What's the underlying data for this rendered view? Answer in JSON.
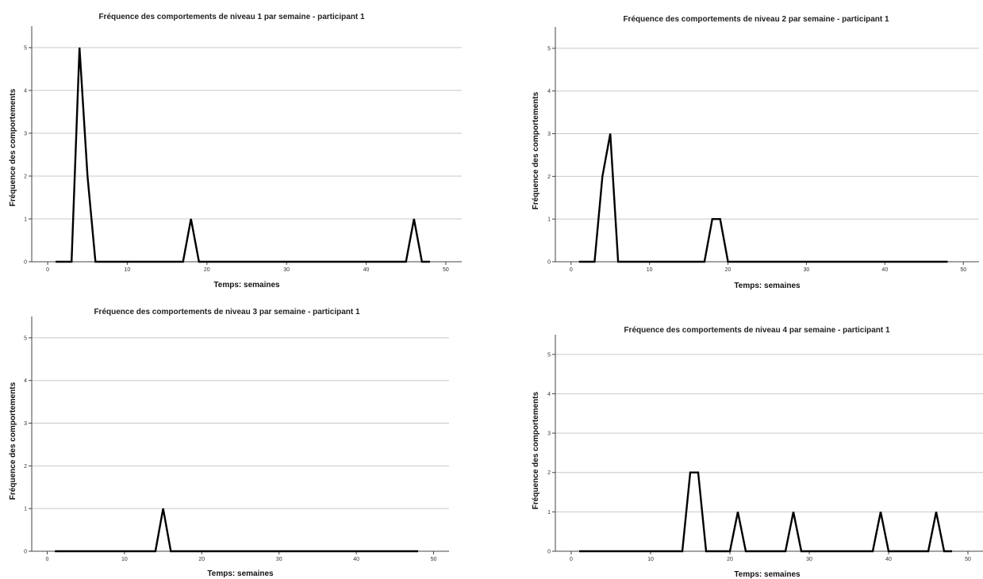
{
  "chart_data": [
    {
      "type": "line",
      "title": "Fréquence des comportements de niveau 1 par semaine - participant 1",
      "xlabel": "Temps: semaines",
      "ylabel": "Fréquence des comportements",
      "xlim": [
        -2,
        52
      ],
      "ylim": [
        0,
        5.5
      ],
      "x_ticks": [
        0,
        10,
        20,
        30,
        40,
        50
      ],
      "y_ticks": [
        0,
        1,
        2,
        3,
        4,
        5
      ],
      "grid": "horizontal",
      "x": [
        1,
        3,
        4,
        5,
        6,
        17,
        18,
        19,
        45,
        46,
        47,
        48
      ],
      "y": [
        0,
        0,
        5,
        2,
        0,
        0,
        1,
        0,
        0,
        1,
        0,
        0
      ]
    },
    {
      "type": "line",
      "title": "Fréquence des comportements de niveau 2 par semaine - participant 1",
      "xlabel": "Temps: semaines",
      "ylabel": "Fréquence des comportements",
      "xlim": [
        -2,
        52
      ],
      "ylim": [
        0,
        5.5
      ],
      "x_ticks": [
        0,
        10,
        20,
        30,
        40,
        50
      ],
      "y_ticks": [
        0,
        1,
        2,
        3,
        4,
        5
      ],
      "grid": "horizontal",
      "x": [
        1,
        3,
        4,
        5,
        6,
        17,
        18,
        19,
        20,
        48
      ],
      "y": [
        0,
        0,
        2,
        3,
        0,
        0,
        1,
        1,
        0,
        0
      ]
    },
    {
      "type": "line",
      "title": "Fréquence des comportements de niveau 3 par semaine - participant 1",
      "xlabel": "Temps: semaines",
      "ylabel": "Fréquence des comportements",
      "xlim": [
        -2,
        52
      ],
      "ylim": [
        0,
        5.5
      ],
      "x_ticks": [
        0,
        10,
        20,
        30,
        40,
        50
      ],
      "y_ticks": [
        0,
        1,
        2,
        3,
        4,
        5
      ],
      "grid": "horizontal",
      "x": [
        1,
        14,
        15,
        16,
        48
      ],
      "y": [
        0,
        0,
        1,
        0,
        0
      ]
    },
    {
      "type": "line",
      "title": "Fréquence des comportements de niveau 4 par semaine - participant 1",
      "xlabel": "Temps: semaines",
      "ylabel": "Fréquence des comportements",
      "xlim": [
        -2,
        52
      ],
      "ylim": [
        0,
        5.5
      ],
      "x_ticks": [
        0,
        10,
        20,
        30,
        40,
        50
      ],
      "y_ticks": [
        0,
        1,
        2,
        3,
        4,
        5
      ],
      "grid": "horizontal",
      "x": [
        1,
        14,
        15,
        16,
        17,
        20,
        21,
        22,
        27,
        28,
        29,
        38,
        39,
        40,
        45,
        46,
        47,
        48
      ],
      "y": [
        0,
        0,
        2,
        2,
        0,
        0,
        1,
        0,
        0,
        1,
        0,
        0,
        1,
        0,
        0,
        1,
        0,
        0
      ]
    }
  ]
}
